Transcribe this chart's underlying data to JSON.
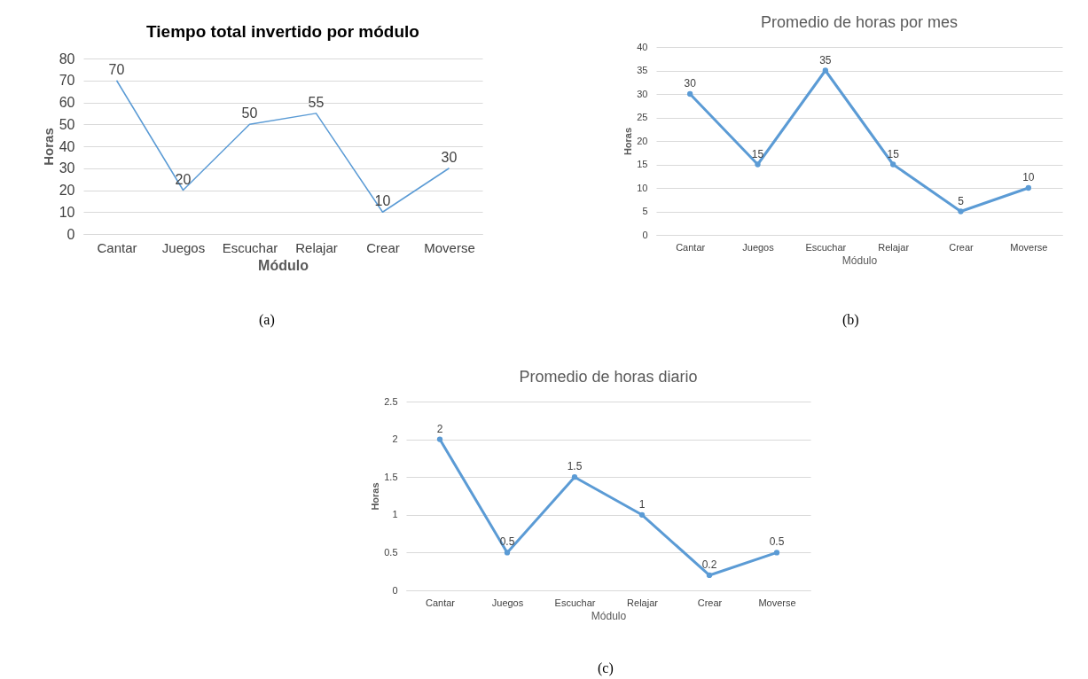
{
  "chart_data": [
    {
      "type": "line",
      "title": "Tiempo total invertido por módulo",
      "xlabel": "Módulo",
      "ylabel": "Horas",
      "categories": [
        "Cantar",
        "Juegos",
        "Escuchar",
        "Relajar",
        "Crear",
        "Moverse"
      ],
      "values": [
        70,
        20,
        50,
        55,
        10,
        30
      ],
      "color": "#5b9bd5",
      "ylim": [
        0,
        80
      ],
      "yticks": [
        0,
        10,
        20,
        30,
        40,
        50,
        60,
        70,
        80
      ],
      "grid": "y",
      "marker": "none",
      "data_labels": true,
      "annotations": [
        "(a)"
      ]
    },
    {
      "type": "line",
      "title": "Promedio de horas por mes",
      "xlabel": "Módulo",
      "ylabel": "Horas",
      "categories": [
        "Cantar",
        "Juegos",
        "Escuchar",
        "Relajar",
        "Crear",
        "Moverse"
      ],
      "values": [
        30,
        15,
        35,
        15,
        5,
        10
      ],
      "color": "#5b9bd5",
      "ylim": [
        0,
        40
      ],
      "yticks": [
        0,
        5,
        10,
        15,
        20,
        25,
        30,
        35,
        40
      ],
      "grid": "y",
      "marker": "circle",
      "data_labels": true,
      "annotations": [
        "(b)"
      ]
    },
    {
      "type": "line",
      "title": "Promedio de horas diario",
      "xlabel": "Módulo",
      "ylabel": "Horas",
      "categories": [
        "Cantar",
        "Juegos",
        "Escuchar",
        "Relajar",
        "Crear",
        "Moverse"
      ],
      "values": [
        2,
        0.5,
        1.5,
        1,
        0.2,
        0.5
      ],
      "color": "#5b9bd5",
      "ylim": [
        0,
        2.5
      ],
      "yticks": [
        0,
        0.5,
        1,
        1.5,
        2,
        2.5
      ],
      "grid": "y",
      "marker": "circle",
      "data_labels": true,
      "annotations": [
        "(c)"
      ]
    }
  ]
}
